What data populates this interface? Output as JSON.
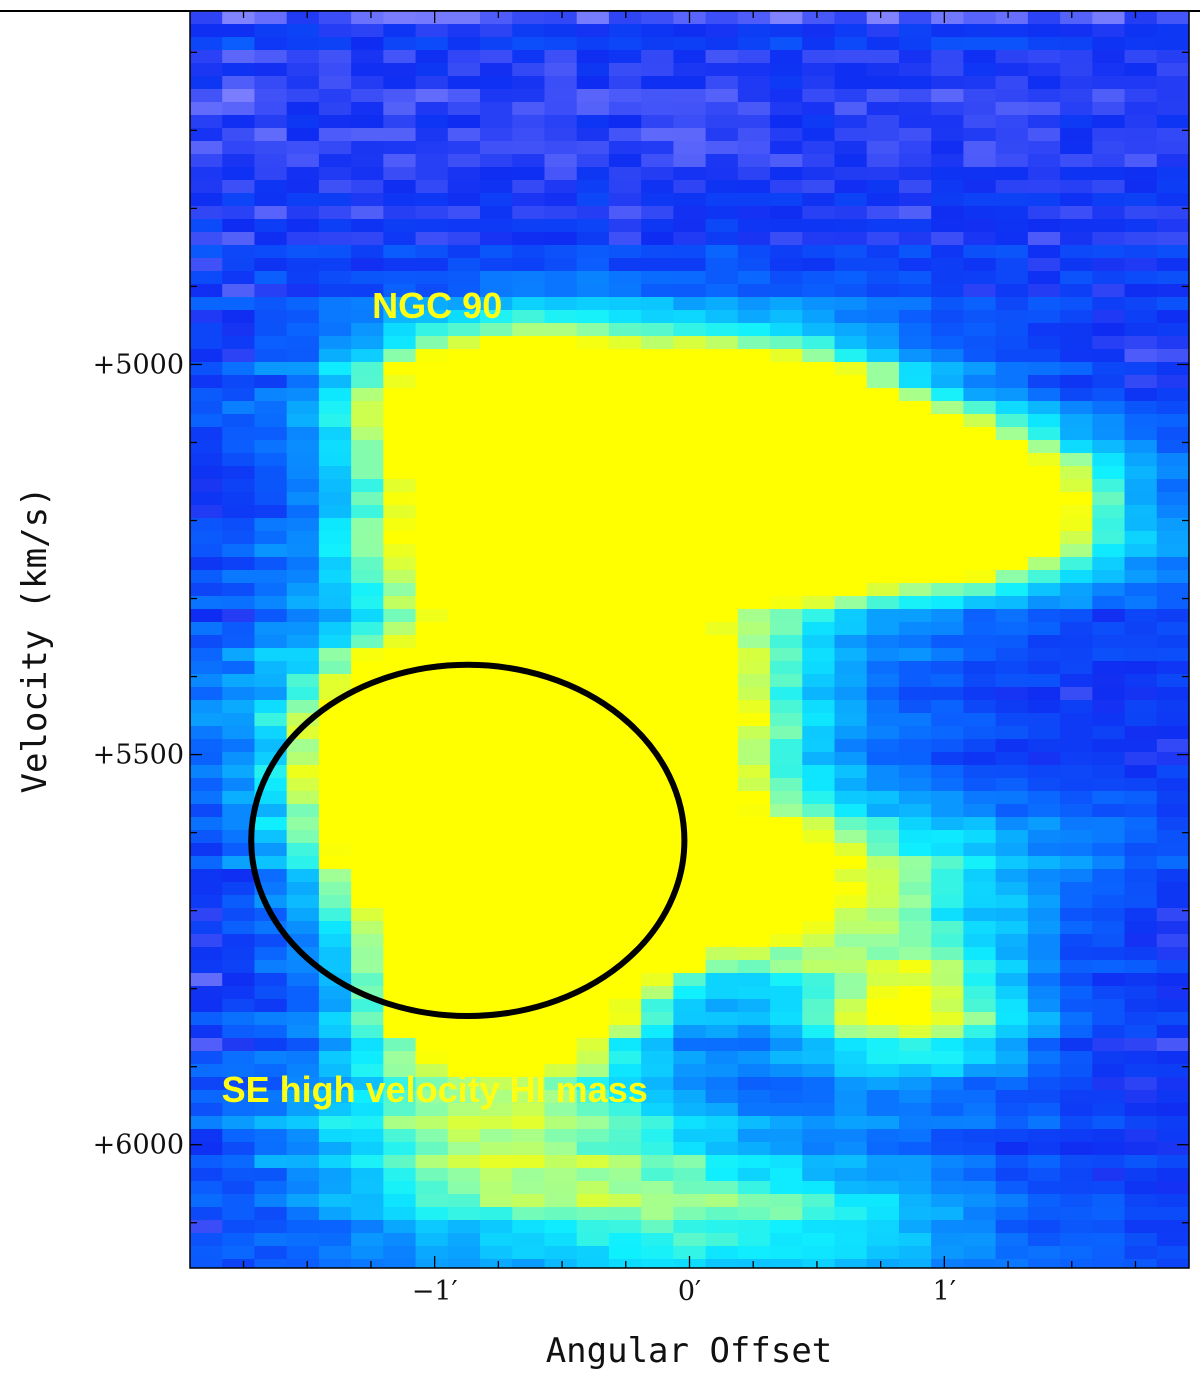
{
  "chart_data": {
    "type": "heatmap",
    "title": "",
    "xlabel": "Angular Offset",
    "ylabel": "Velocity (km/s)",
    "xlim": [
      -1.96,
      1.96
    ],
    "ylim": [
      6158,
      4547
    ],
    "x_ticks": [
      {
        "value": -1,
        "label": "−1′"
      },
      {
        "value": 0,
        "label": "0′"
      },
      {
        "value": 1,
        "label": "1′"
      }
    ],
    "y_ticks": [
      {
        "value": 5000,
        "label": "+5000"
      },
      {
        "value": 5500,
        "label": "+5500"
      },
      {
        "value": 6000,
        "label": "+6000"
      }
    ],
    "colormap": [
      "#f4f4ff",
      "#8888ff",
      "#0f2df2",
      "#0a66ff",
      "#0aa8ff",
      "#0ff0ff",
      "#9cff9c",
      "#ffff00"
    ],
    "annotations": [
      {
        "text": "NGC 90",
        "x": -0.99,
        "y": 4925
      },
      {
        "text": "SE high velocity HI mass",
        "x": -1.0,
        "y": 5930
      }
    ],
    "ellipse": {
      "center_x": -0.87,
      "center_y": 5610,
      "radius_x": 0.85,
      "radius_y": 225,
      "color": "#000000"
    },
    "emission_regions": [
      {
        "x": -0.75,
        "y": 5035,
        "sx": 0.45,
        "sy": 10,
        "amp": 1.0
      },
      {
        "x": 0.15,
        "y": 5055,
        "sx": 0.6,
        "sy": 12,
        "amp": 0.55
      },
      {
        "x": 0.3,
        "y": 5115,
        "sx": 0.35,
        "sy": 12,
        "amp": 1.0
      },
      {
        "x": -0.2,
        "y": 5115,
        "sx": 0.5,
        "sy": 12,
        "amp": 0.45
      },
      {
        "x": 0.95,
        "y": 5165,
        "sx": 0.45,
        "sy": 10,
        "amp": 1.0
      },
      {
        "x": -0.8,
        "y": 5195,
        "sx": 0.45,
        "sy": 9,
        "amp": 0.65
      },
      {
        "x": 0.6,
        "y": 5195,
        "sx": 0.7,
        "sy": 9,
        "amp": 0.75
      },
      {
        "x": -0.3,
        "y": 5340,
        "sx": 0.5,
        "sy": 18,
        "amp": 0.45
      },
      {
        "x": -0.5,
        "y": 5445,
        "sx": 0.8,
        "sy": 12,
        "amp": 0.45
      },
      {
        "x": -0.65,
        "y": 5520,
        "sx": 0.5,
        "sy": 22,
        "amp": 1.05
      },
      {
        "x": -1.0,
        "y": 5545,
        "sx": 0.35,
        "sy": 14,
        "amp": 0.75
      },
      {
        "x": -0.55,
        "y": 5640,
        "sx": 0.35,
        "sy": 8,
        "amp": 1.0
      },
      {
        "x": 0.1,
        "y": 5655,
        "sx": 0.45,
        "sy": 10,
        "amp": 0.65
      },
      {
        "x": -0.55,
        "y": 5710,
        "sx": 0.5,
        "sy": 10,
        "amp": 0.6
      },
      {
        "x": 0.9,
        "y": 5660,
        "sx": 0.5,
        "sy": 10,
        "amp": 0.4
      },
      {
        "x": -0.75,
        "y": 5820,
        "sx": 0.35,
        "sy": 9,
        "amp": 1.0
      },
      {
        "x": 0.85,
        "y": 5820,
        "sx": 0.35,
        "sy": 9,
        "amp": 0.7
      },
      {
        "x": -0.8,
        "y": 6000,
        "sx": 0.6,
        "sy": 12,
        "amp": 0.55
      },
      {
        "x": 0.3,
        "y": 6080,
        "sx": 0.7,
        "sy": 10,
        "amp": 0.45
      }
    ],
    "edge_feature_velocities": [
      4890,
      4930,
      5015,
      5135,
      5185,
      5210,
      5575,
      5685,
      5710,
      6025,
      6120
    ]
  }
}
